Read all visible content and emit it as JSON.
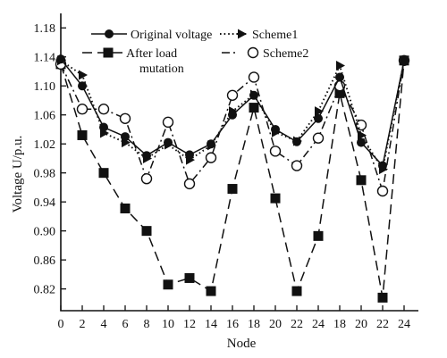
{
  "chart_data": {
    "type": "line",
    "title": "",
    "xlabel": "Node",
    "ylabel": "Voltage U/p.u.",
    "x_ticks": [
      "0",
      "2",
      "4",
      "6",
      "8",
      "10",
      "12",
      "14",
      "16",
      "18",
      "20",
      "22",
      "24",
      "18",
      "20",
      "22",
      "24"
    ],
    "y_ticks": [
      "0.82",
      "0.86",
      "0.90",
      "0.94",
      "0.98",
      "1.02",
      "1.06",
      "1.10",
      "1.14",
      "1.18"
    ],
    "ylim": [
      0.79,
      1.2
    ],
    "grid": false,
    "legend_position": "top",
    "legend": [
      {
        "series": "original",
        "label": "Original voltage"
      },
      {
        "series": "scheme1",
        "label": "Scheme1"
      },
      {
        "series": "after",
        "label": "After load\nmutation"
      },
      {
        "series": "scheme2",
        "label": "Scheme2"
      }
    ],
    "series": [
      {
        "key": "original",
        "name": "Original voltage",
        "x": [
          0,
          1,
          2,
          3,
          4,
          5,
          6,
          7,
          8,
          9,
          10,
          11,
          12,
          13,
          14,
          15,
          16
        ],
        "values": [
          1.137,
          1.1,
          1.043,
          1.03,
          1.004,
          1.022,
          1.005,
          1.02,
          1.06,
          1.087,
          1.04,
          1.023,
          1.055,
          1.112,
          1.022,
          0.99,
          1.135
        ],
        "style": "solid",
        "marker": "circle-filled"
      },
      {
        "key": "scheme1",
        "name": "Scheme1",
        "x": [
          0,
          1,
          2,
          3,
          4,
          5,
          6,
          7,
          8,
          9,
          10,
          11,
          12,
          13,
          14,
          15,
          16
        ],
        "values": [
          1.135,
          1.115,
          1.035,
          1.022,
          1.0,
          1.019,
          0.998,
          1.018,
          1.065,
          1.088,
          1.036,
          1.024,
          1.065,
          1.128,
          1.032,
          0.985,
          1.135
        ],
        "style": "dotted",
        "marker": "triangle-right"
      },
      {
        "key": "after",
        "name": "After load mutation",
        "x": [
          0,
          1,
          2,
          3,
          4,
          5,
          6,
          7,
          8,
          9,
          10,
          11,
          12,
          13,
          14,
          15,
          16
        ],
        "values": [
          1.13,
          1.032,
          0.98,
          0.931,
          0.9,
          0.826,
          0.835,
          0.817,
          0.958,
          1.07,
          0.945,
          0.817,
          0.893,
          1.09,
          0.97,
          0.808,
          1.135
        ],
        "style": "long-dash",
        "marker": "square-filled"
      },
      {
        "key": "scheme2",
        "name": "Scheme2",
        "x": [
          0,
          1,
          2,
          3,
          4,
          5,
          6,
          7,
          8,
          9,
          10,
          11,
          12,
          13,
          14,
          15,
          16
        ],
        "values": [
          1.13,
          1.068,
          1.068,
          1.055,
          0.972,
          1.05,
          0.965,
          1.001,
          1.087,
          1.112,
          1.01,
          0.99,
          1.028,
          1.1,
          1.046,
          0.955,
          1.135
        ],
        "style": "dash-dot",
        "marker": "circle-open"
      }
    ]
  }
}
